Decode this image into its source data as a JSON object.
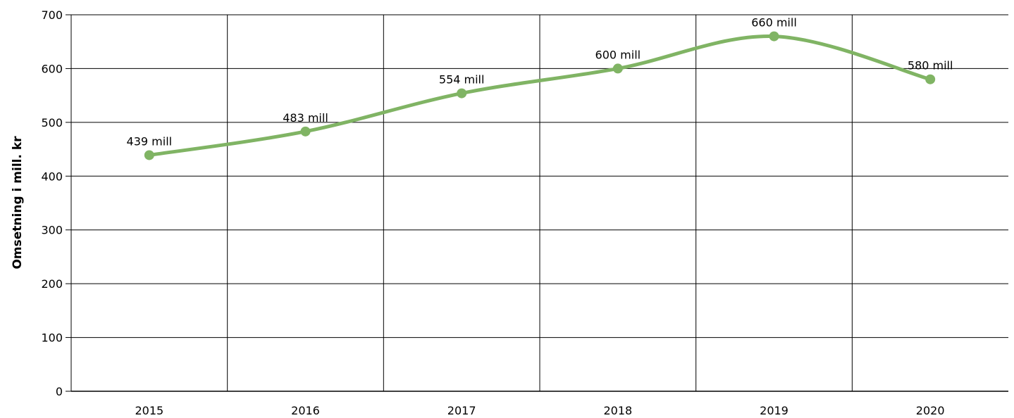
{
  "chart_data": {
    "type": "line",
    "title": "",
    "xlabel": "",
    "ylabel": "Omsetning i mill. kr",
    "categories": [
      "2015",
      "2016",
      "2017",
      "2018",
      "2019",
      "2020"
    ],
    "series": [
      {
        "values": [
          439,
          483,
          554,
          600,
          660,
          580
        ],
        "data_labels": [
          "439 mill",
          "483 mill",
          "554 mill",
          "600 mill",
          "660 mill",
          "580 mill"
        ],
        "color": "#80b464",
        "smooth": true,
        "markers": true
      }
    ],
    "ylim": [
      0,
      700
    ],
    "yticks": [
      "0",
      "100",
      "200",
      "300",
      "400",
      "500",
      "600",
      "700"
    ],
    "grid": true,
    "legend": "none"
  }
}
